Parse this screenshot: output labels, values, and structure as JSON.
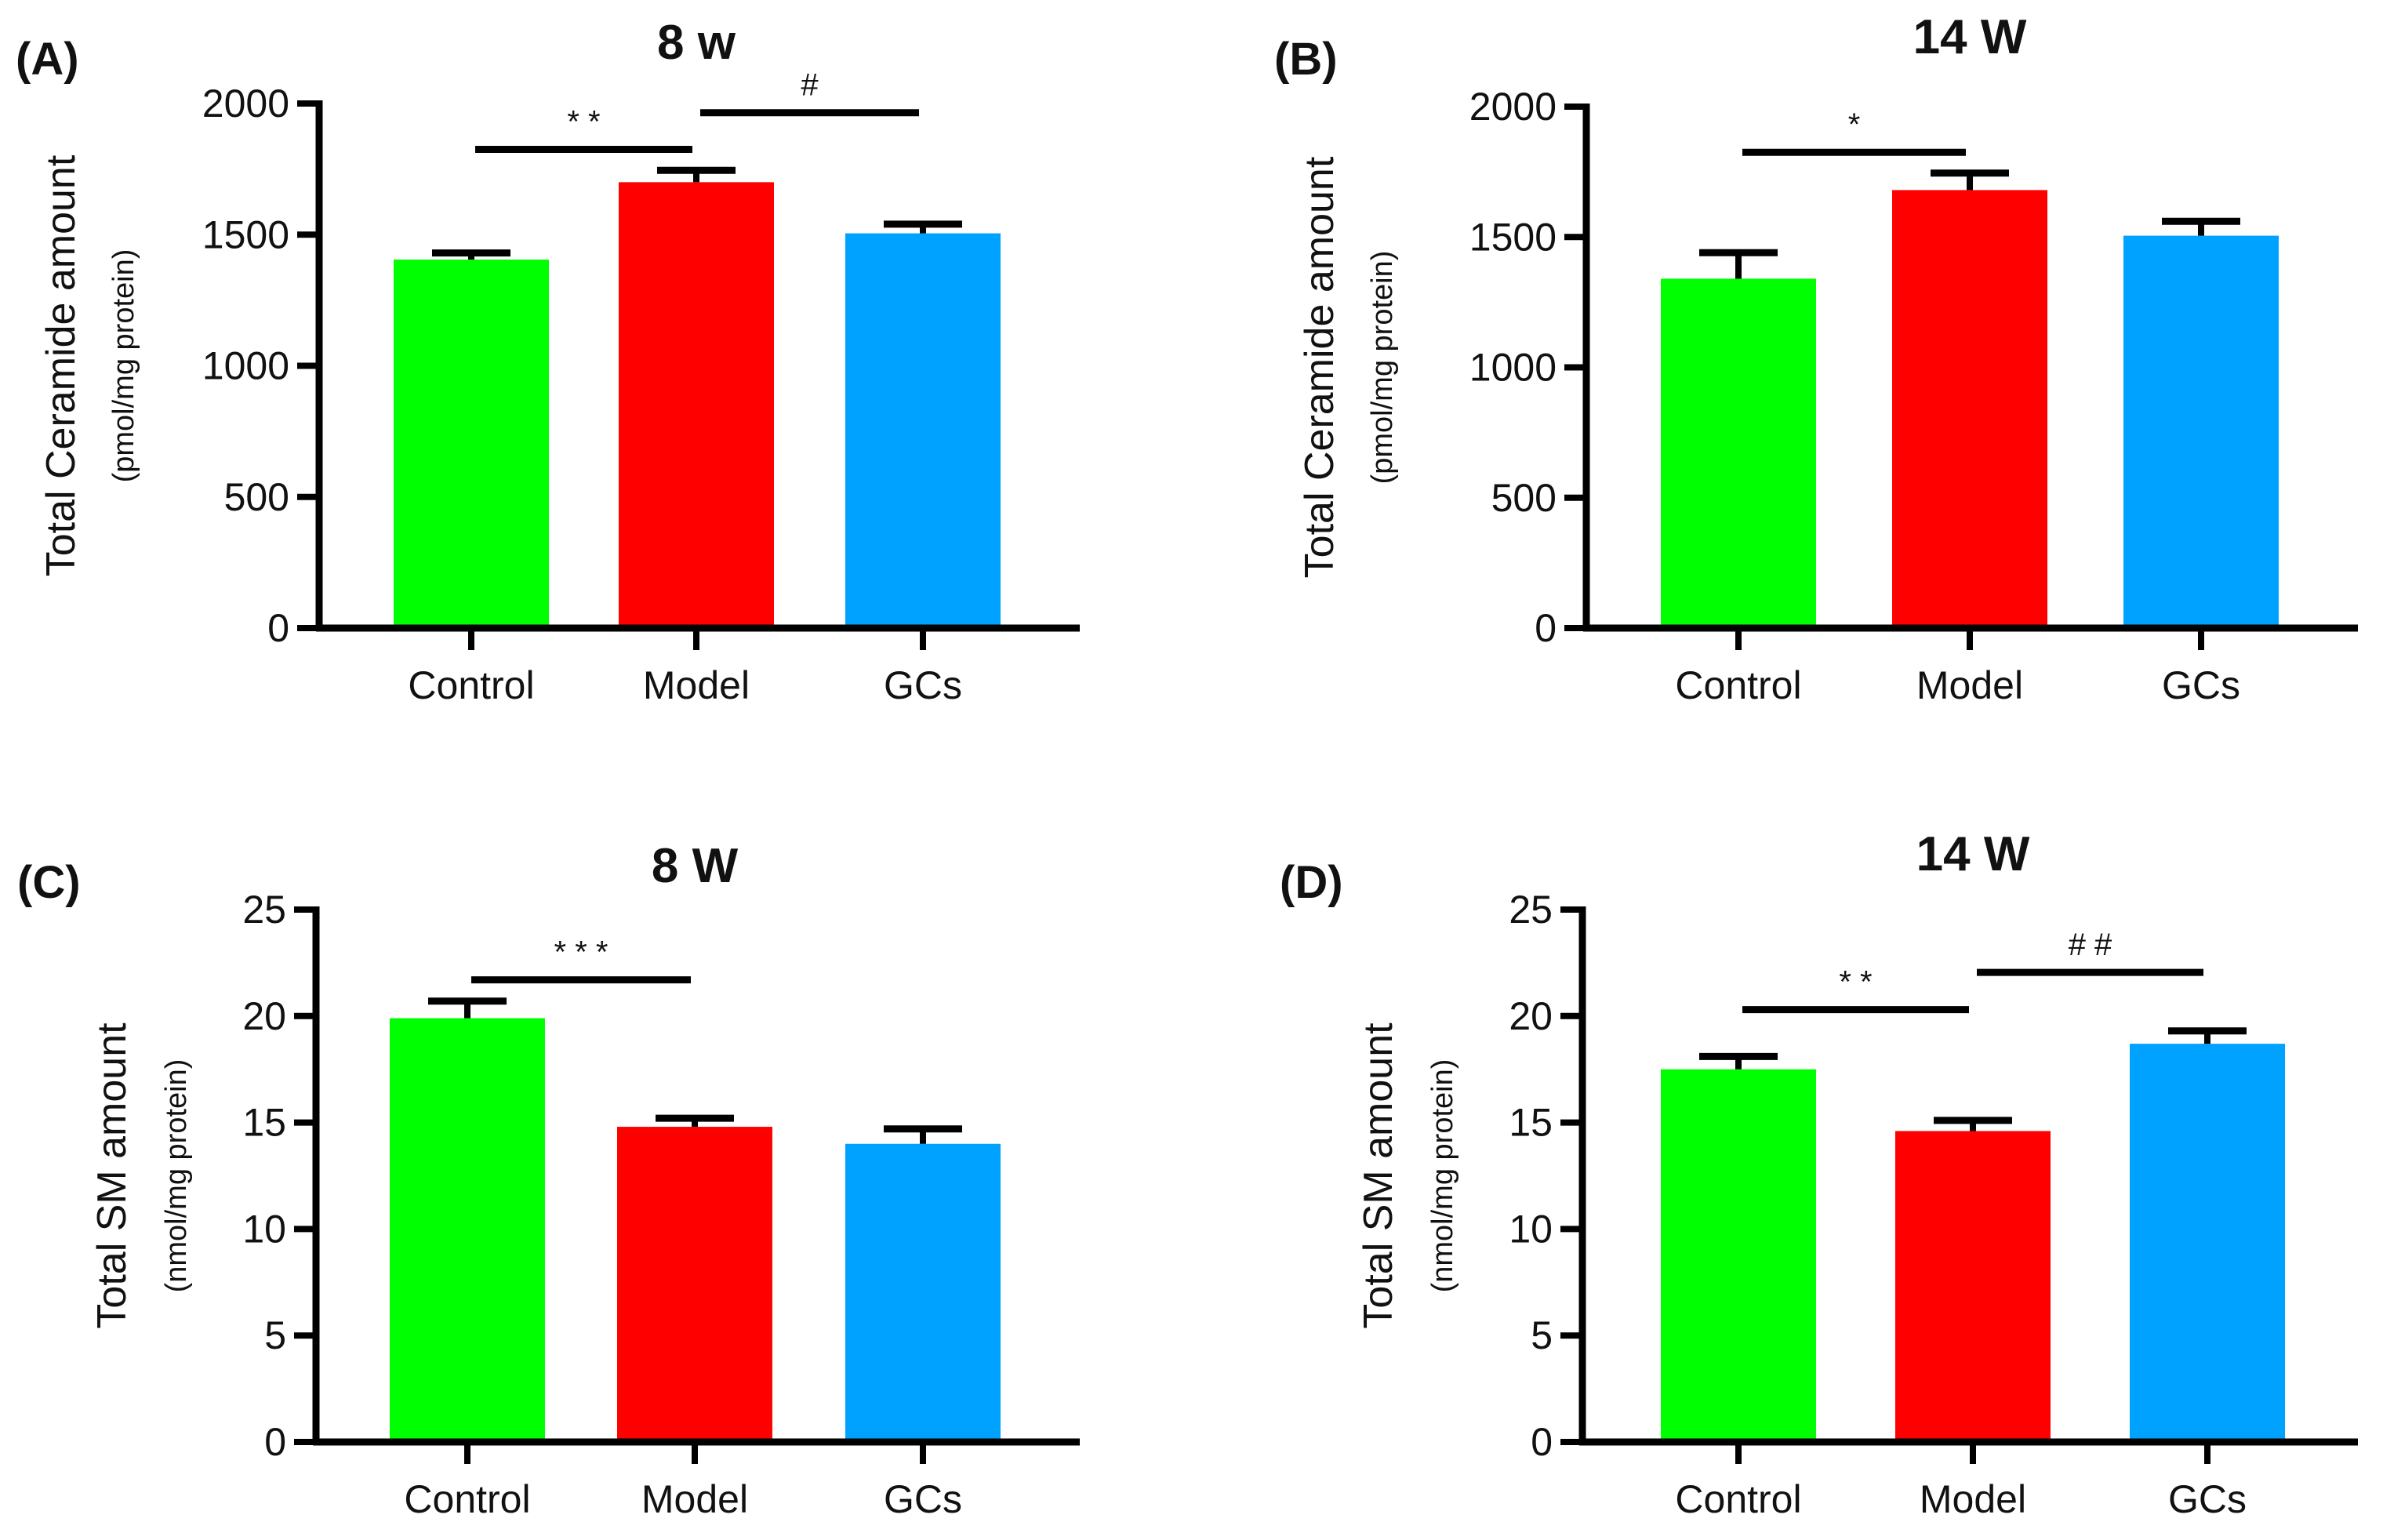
{
  "chart_data": [
    {
      "type": "bar",
      "panel": "(A)",
      "title": "8 w",
      "ylabel": "Total Ceramide amount",
      "ylabel_unit": "(pmol/mg protein)",
      "xlabel": "",
      "categories": [
        "Control",
        "Model",
        "GCs"
      ],
      "values": [
        1405,
        1700,
        1505
      ],
      "errors": [
        25,
        45,
        35
      ],
      "colors": [
        "#00FF00",
        "#FF0000",
        "#00A2FF"
      ],
      "ylim": [
        0,
        2000
      ],
      "yticks": [
        0,
        500,
        1000,
        1500,
        2000
      ],
      "significance": [
        {
          "from": 0,
          "to": 1,
          "label": "* *",
          "level": 0
        },
        {
          "from": 1,
          "to": 2,
          "label": "#",
          "level": 1
        }
      ]
    },
    {
      "type": "bar",
      "panel": "(B)",
      "title": "14 W",
      "ylabel": "Total Ceramide amount",
      "ylabel_unit": "(pmol/mg protein)",
      "xlabel": "",
      "categories": [
        "Control",
        "Model",
        "GCs"
      ],
      "values": [
        1340,
        1680,
        1505
      ],
      "errors": [
        100,
        65,
        55
      ],
      "colors": [
        "#00FF00",
        "#FF0000",
        "#00A2FF"
      ],
      "ylim": [
        0,
        2000
      ],
      "yticks": [
        0,
        500,
        1000,
        1500,
        2000
      ],
      "significance": [
        {
          "from": 0,
          "to": 1,
          "label": "*",
          "level": 0
        }
      ]
    },
    {
      "type": "bar",
      "panel": "(C)",
      "title": "8 W",
      "ylabel": "Total SM amount",
      "ylabel_unit": "(nmol/mg protein)",
      "xlabel": "",
      "categories": [
        "Control",
        "Model",
        "GCs"
      ],
      "values": [
        19.9,
        14.8,
        14.0
      ],
      "errors": [
        0.8,
        0.4,
        0.7
      ],
      "colors": [
        "#00FF00",
        "#FF0000",
        "#00A2FF"
      ],
      "ylim": [
        0,
        25
      ],
      "yticks": [
        0,
        5,
        10,
        15,
        20,
        25
      ],
      "significance": [
        {
          "from": 0,
          "to": 1,
          "label": "* * *",
          "level": 0
        }
      ]
    },
    {
      "type": "bar",
      "panel": "(D)",
      "title": "14 W",
      "ylabel": "Total SM amount",
      "ylabel_unit": "(nmol/mg protein)",
      "xlabel": "",
      "categories": [
        "Control",
        "Model",
        "GCs"
      ],
      "values": [
        17.5,
        14.6,
        18.7
      ],
      "errors": [
        0.6,
        0.5,
        0.6
      ],
      "colors": [
        "#00FF00",
        "#FF0000",
        "#00A2FF"
      ],
      "ylim": [
        0,
        25
      ],
      "yticks": [
        0,
        5,
        10,
        15,
        20,
        25
      ],
      "significance": [
        {
          "from": 0,
          "to": 1,
          "label": "* *",
          "level": 0
        },
        {
          "from": 1,
          "to": 2,
          "label": "# #",
          "level": 1
        }
      ]
    }
  ]
}
